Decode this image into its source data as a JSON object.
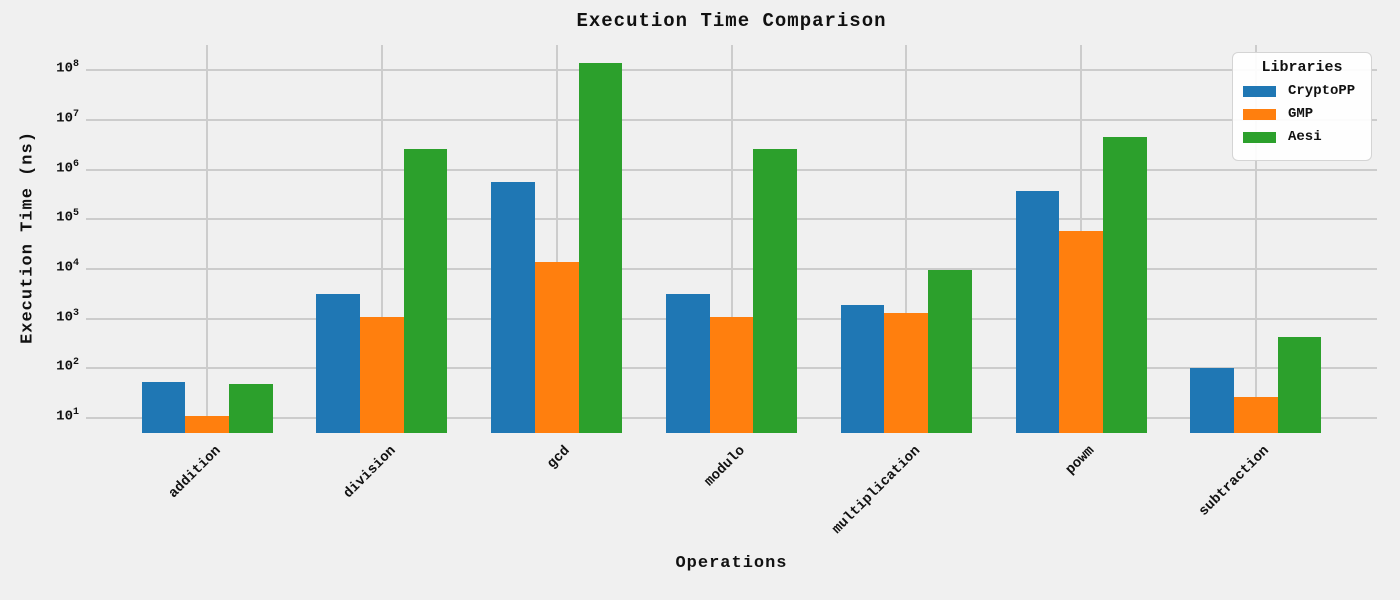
{
  "figure": {
    "title": "Execution Time Comparison",
    "xlabel": "Operations",
    "ylabel": "Execution Time (ns)",
    "background_color": "#f0f0f0",
    "grid_color": "#cccccc"
  },
  "legend": {
    "title": "Libraries"
  },
  "chart_data": {
    "type": "bar",
    "title": "Execution Time Comparison",
    "xlabel": "Operations",
    "ylabel": "Execution Time (ns)",
    "yscale": "log",
    "ylim": [
      5,
      320000000
    ],
    "ytick_exponents": [
      1,
      2,
      3,
      4,
      5,
      6,
      7,
      8
    ],
    "grid": true,
    "legend_title": "Libraries",
    "legend_position": "upper right",
    "categories": [
      "addition",
      "division",
      "gcd",
      "modulo",
      "multiplication",
      "powm",
      "subtraction"
    ],
    "series": [
      {
        "name": "CryptoPP",
        "color": "#1f77b4",
        "values": [
          52,
          3100,
          560000,
          3200,
          1900,
          370000,
          103
        ]
      },
      {
        "name": "GMP",
        "color": "#ff7f0e",
        "values": [
          11,
          1070,
          14000,
          1060,
          1300,
          58000,
          27
        ]
      },
      {
        "name": "Aesi",
        "color": "#2ca02c",
        "values": [
          48,
          2550000,
          140000000,
          2600000,
          9400,
          4500000,
          430
        ]
      }
    ]
  }
}
